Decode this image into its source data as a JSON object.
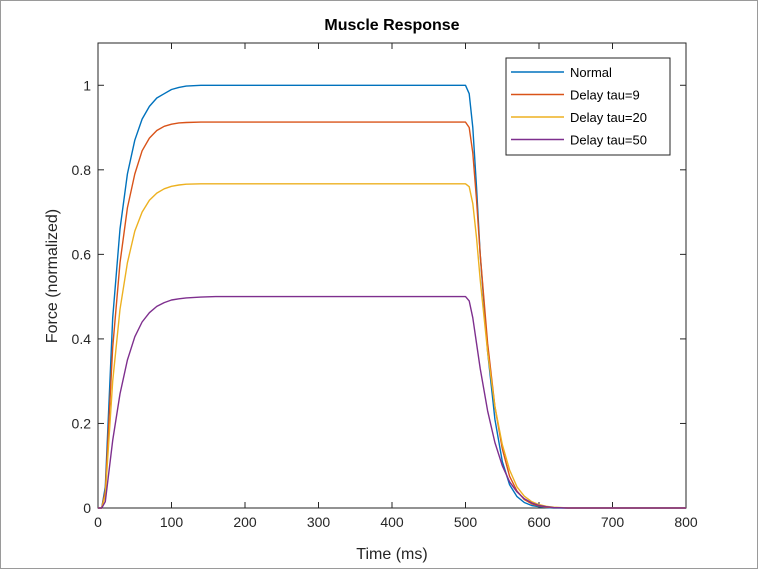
{
  "chart_data": {
    "type": "line",
    "title": "Muscle Response",
    "xlabel": "Time (ms)",
    "ylabel": "Force (normalized)",
    "xlim": [
      0,
      800
    ],
    "ylim": [
      0,
      1.1
    ],
    "xticks": [
      "0",
      "100",
      "200",
      "300",
      "400",
      "500",
      "600",
      "700",
      "800"
    ],
    "yticks": [
      "0",
      "0.2",
      "0.4",
      "0.6",
      "0.8",
      "1"
    ],
    "grid": false,
    "legend_position": "top-right",
    "series": [
      {
        "name": "Normal",
        "color": "#0072bd",
        "x": [
          0,
          5,
          10,
          20,
          30,
          40,
          50,
          60,
          70,
          80,
          90,
          100,
          110,
          120,
          140,
          160,
          200,
          300,
          400,
          500,
          505,
          510,
          515,
          520,
          530,
          540,
          550,
          560,
          570,
          580,
          590,
          600,
          610,
          620,
          640,
          700,
          800
        ],
        "y": [
          0,
          0.0,
          0.05,
          0.45,
          0.66,
          0.79,
          0.87,
          0.92,
          0.95,
          0.97,
          0.98,
          0.99,
          0.995,
          0.998,
          1.0,
          1.0,
          1.0,
          1.0,
          1.0,
          1.0,
          0.98,
          0.9,
          0.76,
          0.6,
          0.37,
          0.21,
          0.11,
          0.055,
          0.027,
          0.013,
          0.006,
          0.003,
          0.001,
          0.0,
          0.0,
          0.0,
          0.0
        ]
      },
      {
        "name": "Delay tau=9",
        "color": "#d95319",
        "x": [
          0,
          5,
          10,
          20,
          30,
          40,
          50,
          60,
          70,
          80,
          90,
          100,
          110,
          120,
          140,
          160,
          200,
          300,
          400,
          500,
          505,
          510,
          515,
          520,
          530,
          540,
          550,
          560,
          570,
          580,
          590,
          600,
          610,
          620,
          640,
          700,
          800
        ],
        "y": [
          0,
          0.0,
          0.04,
          0.38,
          0.58,
          0.71,
          0.79,
          0.845,
          0.875,
          0.893,
          0.903,
          0.908,
          0.911,
          0.912,
          0.913,
          0.913,
          0.913,
          0.913,
          0.913,
          0.913,
          0.9,
          0.84,
          0.73,
          0.6,
          0.39,
          0.24,
          0.14,
          0.075,
          0.04,
          0.02,
          0.01,
          0.005,
          0.002,
          0.001,
          0.0,
          0.0,
          0.0
        ]
      },
      {
        "name": "Delay tau=20",
        "color": "#edb120",
        "x": [
          0,
          5,
          10,
          20,
          30,
          40,
          50,
          60,
          70,
          80,
          90,
          100,
          110,
          120,
          140,
          160,
          200,
          300,
          400,
          500,
          505,
          510,
          515,
          520,
          530,
          540,
          550,
          560,
          570,
          580,
          590,
          600,
          610,
          620,
          640,
          700,
          800
        ],
        "y": [
          0,
          0.0,
          0.03,
          0.3,
          0.47,
          0.58,
          0.655,
          0.7,
          0.728,
          0.745,
          0.755,
          0.761,
          0.764,
          0.766,
          0.767,
          0.767,
          0.767,
          0.767,
          0.767,
          0.767,
          0.76,
          0.72,
          0.64,
          0.54,
          0.37,
          0.24,
          0.15,
          0.09,
          0.05,
          0.028,
          0.015,
          0.008,
          0.004,
          0.002,
          0.0,
          0.0,
          0.0
        ]
      },
      {
        "name": "Delay tau=50",
        "color": "#7e2f8e",
        "x": [
          0,
          5,
          10,
          20,
          30,
          40,
          50,
          60,
          70,
          80,
          90,
          100,
          110,
          120,
          140,
          160,
          200,
          300,
          400,
          500,
          505,
          510,
          515,
          520,
          530,
          540,
          550,
          560,
          570,
          580,
          590,
          600,
          610,
          620,
          640,
          700,
          800
        ],
        "y": [
          0,
          0.0,
          0.015,
          0.16,
          0.27,
          0.35,
          0.405,
          0.44,
          0.462,
          0.477,
          0.486,
          0.492,
          0.495,
          0.497,
          0.499,
          0.5,
          0.5,
          0.5,
          0.5,
          0.5,
          0.49,
          0.45,
          0.39,
          0.33,
          0.23,
          0.155,
          0.1,
          0.062,
          0.038,
          0.022,
          0.012,
          0.006,
          0.003,
          0.001,
          0.0,
          0.0,
          0.0
        ]
      }
    ]
  }
}
